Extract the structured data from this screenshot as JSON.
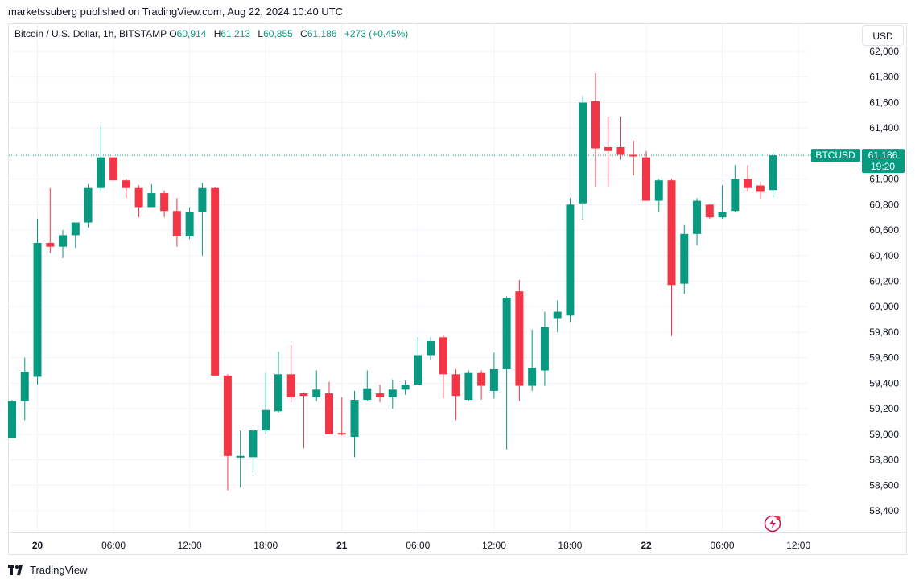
{
  "header": {
    "publisher": "marketssuberg published on TradingView.com, Aug 22, 2024 10:40 UTC"
  },
  "legend": {
    "symbol": "Bitcoin / U.S. Dollar, 1h, BITSTAMP",
    "o_label": "O",
    "o_value": "60,914",
    "h_label": "H",
    "h_value": "61,213",
    "l_label": "L",
    "l_value": "60,855",
    "c_label": "C",
    "c_value": "61,186",
    "change": "+273 (+0.45%)"
  },
  "toolbar": {
    "currency": "USD"
  },
  "price_tag": {
    "ticker": "BTCUSD",
    "price": "61,186",
    "countdown": "19:20"
  },
  "footer": {
    "brand": "TradingView"
  },
  "colors": {
    "up": "#089981",
    "down": "#f23645",
    "grid": "#f0f3fa",
    "last_price_line": "#089981",
    "lightning": "#c2185b"
  },
  "icons": {
    "brand": "tradingview-logo-icon",
    "alert": "lightning-icon"
  },
  "chart_data": {
    "type": "candlestick",
    "timeframe": "1h",
    "y_ticks": [
      58400,
      58600,
      58800,
      59000,
      59200,
      59400,
      59600,
      59800,
      60000,
      60200,
      60400,
      60600,
      60800,
      61000,
      61200,
      61400,
      61600,
      61800,
      62000
    ],
    "y_tick_labels": [
      "58,400",
      "58,600",
      "58,800",
      "59,000",
      "59,200",
      "59,400",
      "59,600",
      "59,800",
      "60,000",
      "60,200",
      "60,400",
      "60,600",
      "60,800",
      "61,000",
      "61,200",
      "61,400",
      "61,600",
      "61,800",
      "62,000"
    ],
    "ylim": [
      58250,
      62060
    ],
    "x_ticks": [
      {
        "index": 2,
        "label": "20",
        "bold": true
      },
      {
        "index": 8,
        "label": "06:00",
        "bold": false
      },
      {
        "index": 14,
        "label": "12:00",
        "bold": false
      },
      {
        "index": 20,
        "label": "18:00",
        "bold": false
      },
      {
        "index": 26,
        "label": "21",
        "bold": true
      },
      {
        "index": 32,
        "label": "06:00",
        "bold": false
      },
      {
        "index": 38,
        "label": "12:00",
        "bold": false
      },
      {
        "index": 44,
        "label": "18:00",
        "bold": false
      },
      {
        "index": 50,
        "label": "22",
        "bold": true
      },
      {
        "index": 56,
        "label": "06:00",
        "bold": false
      },
      {
        "index": 62,
        "label": "12:00",
        "bold": false
      }
    ],
    "last_price": 61186,
    "candles": [
      {
        "o": 58970,
        "h": 59270,
        "l": 58970,
        "c": 59260
      },
      {
        "o": 59260,
        "h": 59600,
        "l": 59110,
        "c": 59490
      },
      {
        "o": 59450,
        "h": 60690,
        "l": 59390,
        "c": 60500
      },
      {
        "o": 60500,
        "h": 60930,
        "l": 60420,
        "c": 60470
      },
      {
        "o": 60470,
        "h": 60600,
        "l": 60380,
        "c": 60560
      },
      {
        "o": 60560,
        "h": 60660,
        "l": 60460,
        "c": 60660
      },
      {
        "o": 60660,
        "h": 60960,
        "l": 60620,
        "c": 60930
      },
      {
        "o": 60930,
        "h": 61430,
        "l": 60890,
        "c": 61170
      },
      {
        "o": 61170,
        "h": 61170,
        "l": 60990,
        "c": 60990
      },
      {
        "o": 60990,
        "h": 61000,
        "l": 60850,
        "c": 60930
      },
      {
        "o": 60930,
        "h": 60950,
        "l": 60700,
        "c": 60780
      },
      {
        "o": 60780,
        "h": 60960,
        "l": 60780,
        "c": 60890
      },
      {
        "o": 60890,
        "h": 60910,
        "l": 60700,
        "c": 60750
      },
      {
        "o": 60750,
        "h": 60850,
        "l": 60470,
        "c": 60550
      },
      {
        "o": 60550,
        "h": 60780,
        "l": 60530,
        "c": 60740
      },
      {
        "o": 60740,
        "h": 60970,
        "l": 60400,
        "c": 60930
      },
      {
        "o": 60930,
        "h": 60940,
        "l": 59460,
        "c": 59460
      },
      {
        "o": 59460,
        "h": 59470,
        "l": 58560,
        "c": 58830
      },
      {
        "o": 58830,
        "h": 59030,
        "l": 58580,
        "c": 58830
      },
      {
        "o": 58820,
        "h": 59040,
        "l": 58700,
        "c": 59030
      },
      {
        "o": 59030,
        "h": 59480,
        "l": 59000,
        "c": 59190
      },
      {
        "o": 59180,
        "h": 59650,
        "l": 59170,
        "c": 59470
      },
      {
        "o": 59470,
        "h": 59700,
        "l": 59250,
        "c": 59290
      },
      {
        "o": 59320,
        "h": 59330,
        "l": 58890,
        "c": 59300
      },
      {
        "o": 59290,
        "h": 59500,
        "l": 59260,
        "c": 59350
      },
      {
        "o": 59320,
        "h": 59410,
        "l": 59000,
        "c": 59000
      },
      {
        "o": 59010,
        "h": 59290,
        "l": 58990,
        "c": 59000
      },
      {
        "o": 58980,
        "h": 59340,
        "l": 58820,
        "c": 59270
      },
      {
        "o": 59270,
        "h": 59500,
        "l": 59260,
        "c": 59360
      },
      {
        "o": 59320,
        "h": 59390,
        "l": 59250,
        "c": 59290
      },
      {
        "o": 59290,
        "h": 59430,
        "l": 59200,
        "c": 59350
      },
      {
        "o": 59350,
        "h": 59420,
        "l": 59310,
        "c": 59390
      },
      {
        "o": 59390,
        "h": 59760,
        "l": 59380,
        "c": 59620
      },
      {
        "o": 59620,
        "h": 59760,
        "l": 59580,
        "c": 59730
      },
      {
        "o": 59760,
        "h": 59780,
        "l": 59280,
        "c": 59470
      },
      {
        "o": 59470,
        "h": 59510,
        "l": 59110,
        "c": 59300
      },
      {
        "o": 59270,
        "h": 59500,
        "l": 59260,
        "c": 59480
      },
      {
        "o": 59480,
        "h": 59500,
        "l": 59270,
        "c": 59380
      },
      {
        "o": 59340,
        "h": 59640,
        "l": 59280,
        "c": 59510
      },
      {
        "o": 59510,
        "h": 60080,
        "l": 58880,
        "c": 60070
      },
      {
        "o": 60120,
        "h": 60210,
        "l": 59260,
        "c": 59380
      },
      {
        "o": 59380,
        "h": 59820,
        "l": 59340,
        "c": 59520
      },
      {
        "o": 59500,
        "h": 59960,
        "l": 59380,
        "c": 59840
      },
      {
        "o": 59910,
        "h": 60050,
        "l": 59800,
        "c": 59960
      },
      {
        "o": 59930,
        "h": 60850,
        "l": 59880,
        "c": 60800
      },
      {
        "o": 60810,
        "h": 61650,
        "l": 60680,
        "c": 61600
      },
      {
        "o": 61610,
        "h": 61830,
        "l": 60940,
        "c": 61240
      },
      {
        "o": 61250,
        "h": 61490,
        "l": 60940,
        "c": 61220
      },
      {
        "o": 61250,
        "h": 61490,
        "l": 61150,
        "c": 61190
      },
      {
        "o": 61190,
        "h": 61300,
        "l": 61030,
        "c": 61180
      },
      {
        "o": 61170,
        "h": 61220,
        "l": 60830,
        "c": 60830
      },
      {
        "o": 60830,
        "h": 61000,
        "l": 60740,
        "c": 60990
      },
      {
        "o": 60990,
        "h": 61000,
        "l": 59770,
        "c": 60170
      },
      {
        "o": 60180,
        "h": 60640,
        "l": 60100,
        "c": 60570
      },
      {
        "o": 60570,
        "h": 60850,
        "l": 60480,
        "c": 60830
      },
      {
        "o": 60800,
        "h": 60800,
        "l": 60690,
        "c": 60700
      },
      {
        "o": 60700,
        "h": 60950,
        "l": 60690,
        "c": 60740
      },
      {
        "o": 60750,
        "h": 61110,
        "l": 60740,
        "c": 61000
      },
      {
        "o": 61000,
        "h": 61110,
        "l": 60900,
        "c": 60930
      },
      {
        "o": 60950,
        "h": 60980,
        "l": 60840,
        "c": 60900
      },
      {
        "o": 60914,
        "h": 61213,
        "l": 60855,
        "c": 61186
      }
    ]
  }
}
